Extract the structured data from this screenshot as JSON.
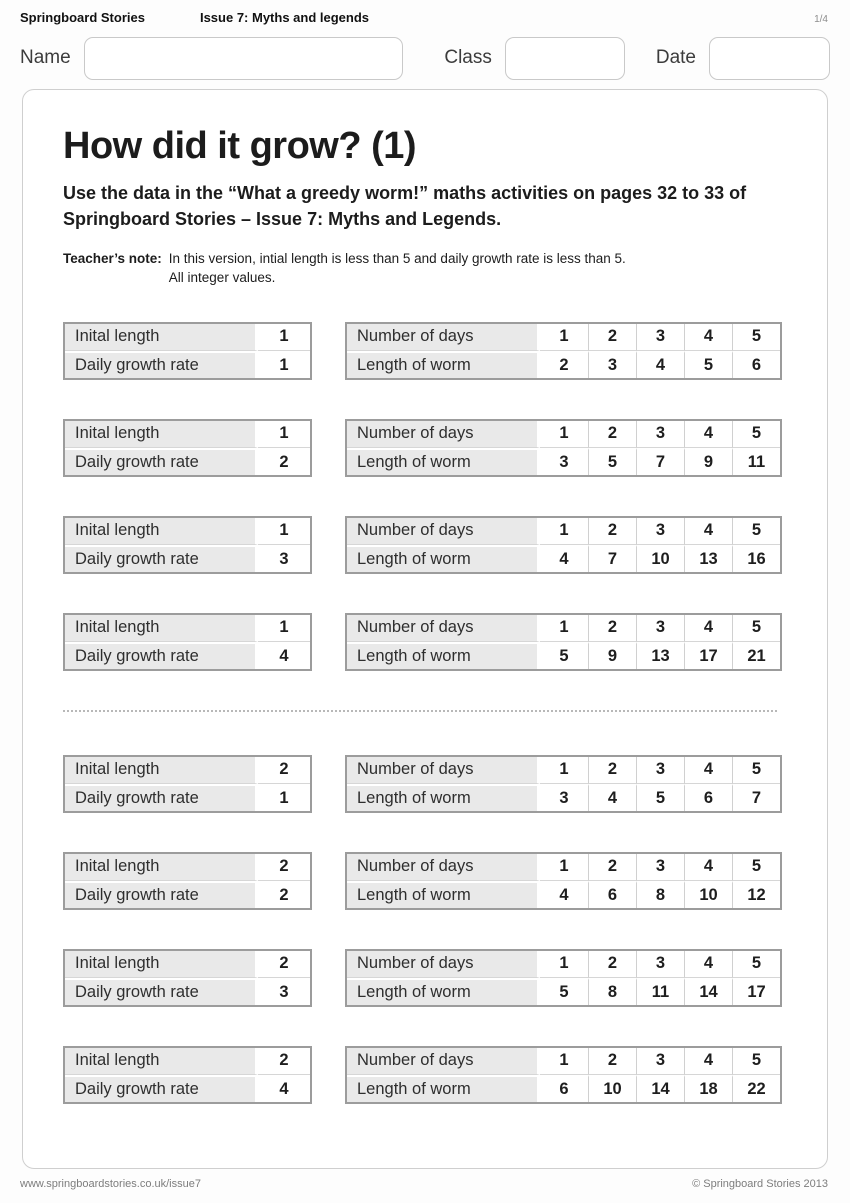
{
  "header": {
    "brand": "Springboard Stories",
    "issue": "Issue 7: Myths and legends",
    "page_indicator": "1/4",
    "name_label": "Name",
    "class_label": "Class",
    "date_label": "Date",
    "name_value": "",
    "class_value": "",
    "date_value": ""
  },
  "worksheet": {
    "title": "How did it grow? (1)",
    "instructions": "Use the data in the “What a greedy worm!” maths activities on pages 32 to 33 of Springboard Stories – Issue 7: Myths and Legends.",
    "teachers_note_label": "Teacher’s note:",
    "teachers_note_line1": "In this version, intial length is less than 5 and daily growth rate is less than 5.",
    "teachers_note_line2": "All integer values.",
    "row_labels": {
      "initial_length": "Inital length",
      "daily_growth_rate": "Daily growth rate",
      "number_of_days": "Number of days",
      "length_of_worm": "Length of worm"
    },
    "groups": [
      {
        "initial_length": "1",
        "daily_growth_rate": "1",
        "days": [
          "1",
          "2",
          "3",
          "4",
          "5"
        ],
        "lengths": [
          "2",
          "3",
          "4",
          "5",
          "6"
        ]
      },
      {
        "initial_length": "1",
        "daily_growth_rate": "2",
        "days": [
          "1",
          "2",
          "3",
          "4",
          "5"
        ],
        "lengths": [
          "3",
          "5",
          "7",
          "9",
          "11"
        ]
      },
      {
        "initial_length": "1",
        "daily_growth_rate": "3",
        "days": [
          "1",
          "2",
          "3",
          "4",
          "5"
        ],
        "lengths": [
          "4",
          "7",
          "10",
          "13",
          "16"
        ]
      },
      {
        "initial_length": "1",
        "daily_growth_rate": "4",
        "days": [
          "1",
          "2",
          "3",
          "4",
          "5"
        ],
        "lengths": [
          "5",
          "9",
          "13",
          "17",
          "21"
        ]
      },
      {
        "initial_length": "2",
        "daily_growth_rate": "1",
        "days": [
          "1",
          "2",
          "3",
          "4",
          "5"
        ],
        "lengths": [
          "3",
          "4",
          "5",
          "6",
          "7"
        ]
      },
      {
        "initial_length": "2",
        "daily_growth_rate": "2",
        "days": [
          "1",
          "2",
          "3",
          "4",
          "5"
        ],
        "lengths": [
          "4",
          "6",
          "8",
          "10",
          "12"
        ]
      },
      {
        "initial_length": "2",
        "daily_growth_rate": "3",
        "days": [
          "1",
          "2",
          "3",
          "4",
          "5"
        ],
        "lengths": [
          "5",
          "8",
          "11",
          "14",
          "17"
        ]
      },
      {
        "initial_length": "2",
        "daily_growth_rate": "4",
        "days": [
          "1",
          "2",
          "3",
          "4",
          "5"
        ],
        "lengths": [
          "6",
          "10",
          "14",
          "18",
          "22"
        ]
      }
    ]
  },
  "footer": {
    "url": "www.springboardstories.co.uk/issue7",
    "copyright": "© Springboard Stories 2013"
  },
  "colors": {
    "label_cell_shade": "#e9e9e9",
    "table_border": "#9c9c9c",
    "inner_border": "#d0d0d0",
    "sheet_border": "#cfcfcf",
    "text": "#1c1c1c",
    "muted": "#7d7d7d"
  }
}
